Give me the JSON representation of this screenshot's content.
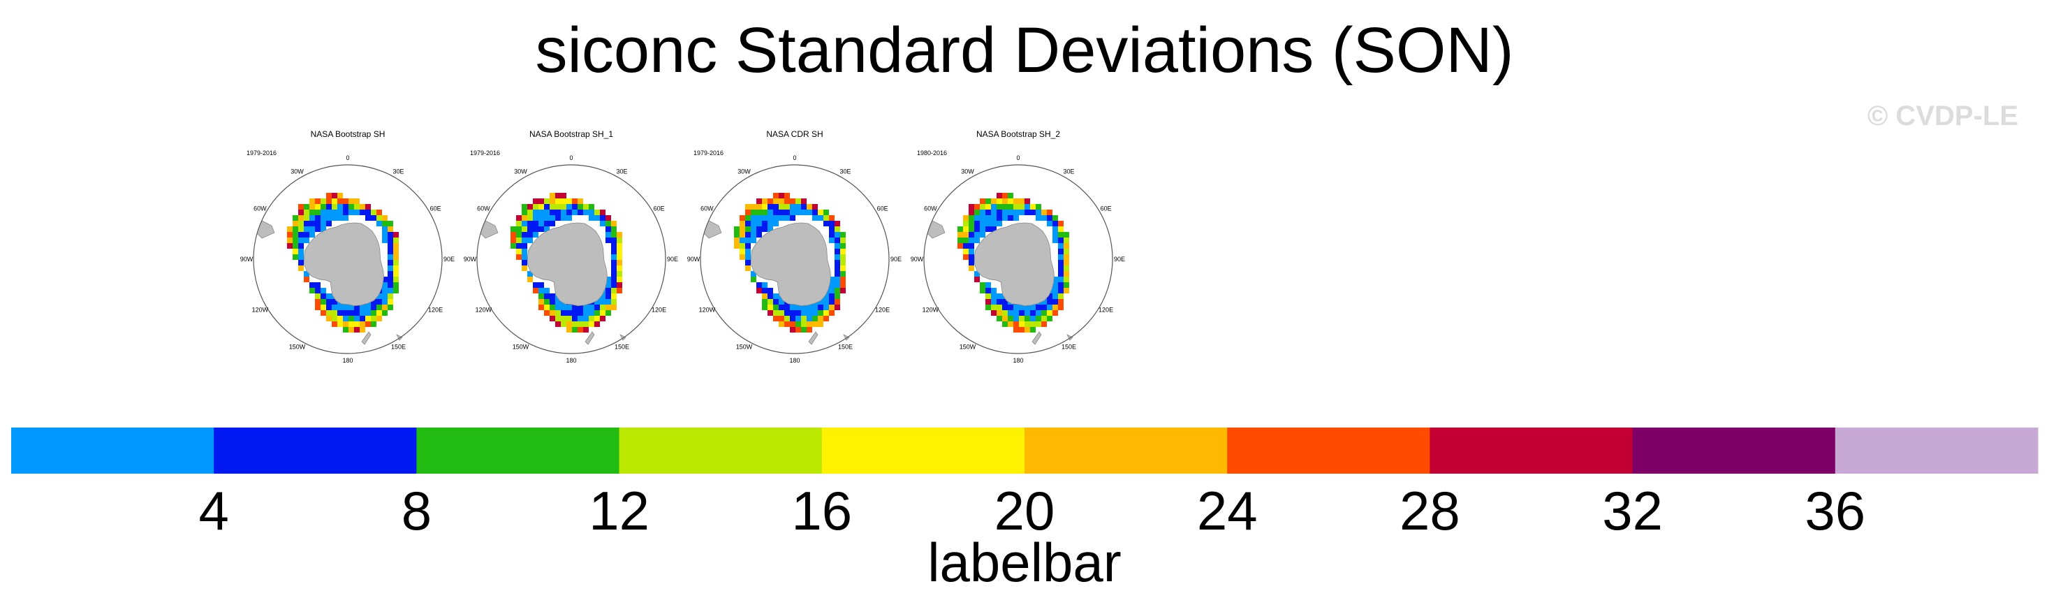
{
  "title": "siconc Standard Deviations (SON)",
  "watermark": "© CVDP-LE",
  "panels": [
    {
      "title": "NASA Bootstrap SH",
      "years": "1979-2016"
    },
    {
      "title": "NASA Bootstrap SH_1",
      "years": "1979-2016"
    },
    {
      "title": "NASA CDR SH",
      "years": "1979-2016"
    },
    {
      "title": "NASA Bootstrap SH_2",
      "years": "1980-2016"
    }
  ],
  "lon_labels": [
    "0",
    "30E",
    "60E",
    "90E",
    "120E",
    "150E",
    "180",
    "150W",
    "120W",
    "90W",
    "60W",
    "30W"
  ],
  "chart_data": {
    "type": "heatmap",
    "title": "siconc Standard Deviations (SON)",
    "projection": "south-polar-stereographic",
    "colorbar": {
      "label": "labelbar",
      "levels": [
        4,
        8,
        12,
        16,
        20,
        24,
        28,
        32,
        36
      ],
      "tick_labels": [
        "4",
        "8",
        "12",
        "16",
        "20",
        "24",
        "28",
        "32",
        "36"
      ],
      "colors": [
        "#0099ff",
        "#0018f2",
        "#22bb12",
        "#bbe800",
        "#fff200",
        "#ffba00",
        "#ff4b00",
        "#c20033",
        "#7f0066",
        "#c8a9d6"
      ]
    },
    "land_color": "#bdbdbd"
  }
}
